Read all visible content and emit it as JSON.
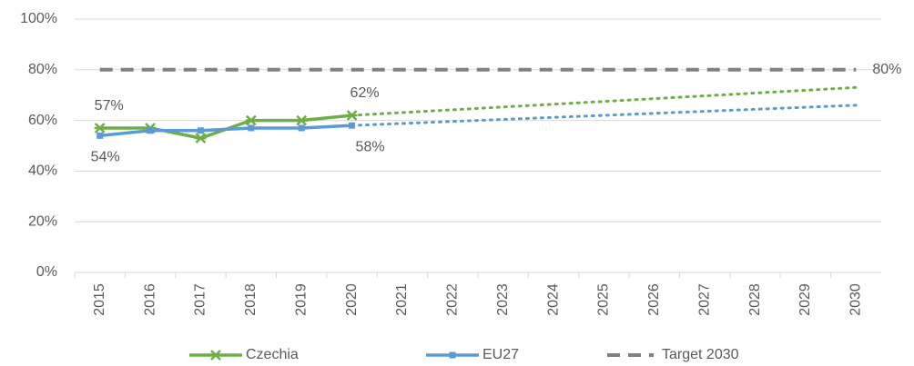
{
  "chart_data": {
    "type": "line",
    "categories": [
      "2015",
      "2016",
      "2017",
      "2018",
      "2019",
      "2020",
      "2021",
      "2022",
      "2023",
      "2024",
      "2025",
      "2026",
      "2027",
      "2028",
      "2029",
      "2030"
    ],
    "series": [
      {
        "name": "Czechia",
        "color": "#70ad47",
        "marker": "x",
        "dash": "solid",
        "values": [
          57,
          57,
          53,
          60,
          60,
          62,
          null,
          null,
          null,
          null,
          null,
          null,
          null,
          null,
          null,
          null
        ],
        "value_labels": [
          "57%",
          null,
          null,
          null,
          null,
          "62%",
          null,
          null,
          null,
          null,
          null,
          null,
          null,
          null,
          null,
          null
        ]
      },
      {
        "name": "EU27",
        "color": "#5b9bd5",
        "marker": "square",
        "dash": "solid",
        "values": [
          54,
          56,
          56,
          57,
          57,
          58,
          null,
          null,
          null,
          null,
          null,
          null,
          null,
          null,
          null,
          null
        ],
        "value_labels": [
          "54%",
          null,
          null,
          null,
          null,
          "58%",
          null,
          null,
          null,
          null,
          null,
          null,
          null,
          null,
          null,
          null
        ]
      },
      {
        "name": "Target 2030",
        "color": "#808080",
        "dash": "dashed",
        "values": [
          80,
          80,
          80,
          80,
          80,
          80,
          80,
          80,
          80,
          80,
          80,
          80,
          80,
          80,
          80,
          80
        ],
        "value_labels": [
          null,
          null,
          null,
          null,
          null,
          null,
          null,
          null,
          null,
          null,
          null,
          null,
          null,
          null,
          null,
          "80%"
        ]
      },
      {
        "color": "#70ad47",
        "dash": "dotted",
        "values": [
          null,
          null,
          null,
          null,
          null,
          62,
          63.1,
          64.2,
          65.3,
          66.4,
          67.5,
          68.6,
          69.7,
          70.8,
          71.9,
          73
        ]
      },
      {
        "color": "#5b9bd5",
        "dash": "dotted",
        "values": [
          null,
          null,
          null,
          null,
          null,
          58,
          58.8,
          59.6,
          60.4,
          61.2,
          62,
          62.8,
          63.6,
          64.4,
          65.2,
          66
        ]
      }
    ],
    "ylim": [
      0,
      100
    ],
    "yticks": [
      {
        "value": 0,
        "label": "0%"
      },
      {
        "value": 20,
        "label": "20%"
      },
      {
        "value": 40,
        "label": "40%"
      },
      {
        "value": 60,
        "label": "60%"
      },
      {
        "value": 80,
        "label": "80%"
      },
      {
        "value": 100,
        "label": "100%"
      }
    ],
    "grid": true,
    "legend": "bottom"
  }
}
